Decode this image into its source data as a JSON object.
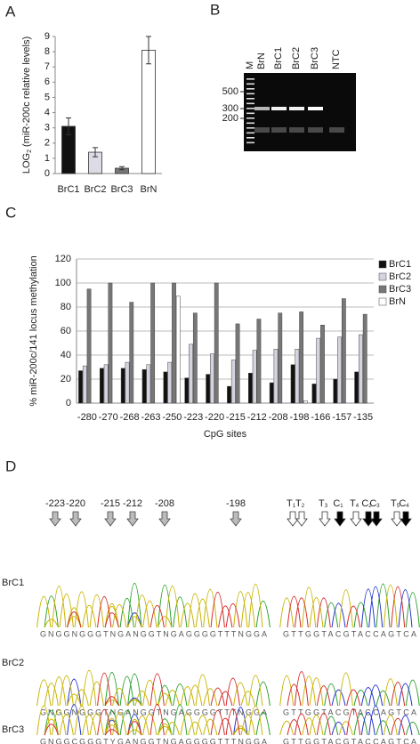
{
  "panels": [
    "A",
    "B",
    "C",
    "D"
  ],
  "chart_data": [
    {
      "type": "bar",
      "categories": [
        "BrC1",
        "BrC2",
        "BrC3",
        "BrN"
      ],
      "values": [
        3.1,
        1.4,
        0.35,
        8.1
      ],
      "errors": [
        0.55,
        0.3,
        0.1,
        0.9
      ],
      "colors": [
        "#111111",
        "#dcdce6",
        "#777777",
        "#ffffff"
      ],
      "ylabel": {
        "text": "LOG",
        "sub": "2",
        "rest": " (miR-200c relative levels)"
      },
      "ylim": [
        0,
        9
      ],
      "yticks": [
        0,
        1,
        2,
        3,
        4,
        5,
        6,
        7,
        8,
        9
      ],
      "grid": false
    },
    {
      "type": "grouped-bar",
      "ylabel": "% miR-200c/141 locus methylation",
      "xlabel": "CpG sites",
      "categories": [
        "-280",
        "-270",
        "-268",
        "-263",
        "-250",
        "-223",
        "-220",
        "-215",
        "-212",
        "-208",
        "-198",
        "-166",
        "-157",
        "-135"
      ],
      "series": [
        {
          "name": "BrC1",
          "color": "#111111",
          "values": [
            27,
            29,
            29,
            28,
            26,
            21,
            24,
            14,
            25,
            17,
            32,
            16,
            20,
            26
          ]
        },
        {
          "name": "BrC2",
          "color": "#d4d4e0",
          "values": [
            31,
            32,
            34,
            32,
            34,
            49,
            41,
            36,
            44,
            45,
            45,
            54,
            55,
            57
          ]
        },
        {
          "name": "BrC3",
          "color": "#777777",
          "values": [
            95,
            100,
            84,
            100,
            100,
            75,
            100,
            66,
            70,
            75,
            76,
            65,
            87,
            74
          ]
        },
        {
          "name": "BrN",
          "color": "#ffffff",
          "values": [
            0,
            0,
            0,
            0,
            89,
            0,
            0,
            0,
            0,
            0,
            2,
            0,
            0,
            0
          ]
        }
      ],
      "ylim": [
        0,
        120
      ],
      "yticks": [
        0,
        20,
        40,
        60,
        80,
        100,
        120
      ],
      "grid": true,
      "legend": "right"
    }
  ],
  "gel": {
    "lanes": [
      "M",
      "BrN",
      "BrC1",
      "BrC2",
      "BrC3",
      "NTC"
    ],
    "markers": [
      "500",
      "300",
      "200"
    ]
  },
  "sequencing": {
    "positions": [
      "-223",
      "-220",
      "-215",
      "-212",
      "-208",
      "-198"
    ],
    "sites": [
      {
        "text": "T",
        "sub": "1"
      },
      {
        "text": "T",
        "sub": "2"
      },
      {
        "text": "T",
        "sub": "3"
      },
      {
        "text": "C",
        "sub": "1"
      },
      {
        "text": "T",
        "sub": "4"
      },
      {
        "text": "C",
        "sub": "2"
      },
      {
        "text": "C",
        "sub": "3"
      },
      {
        "text": "T",
        "sub": "5"
      },
      {
        "text": "C",
        "sub": "4"
      }
    ],
    "rows": [
      {
        "name": "BrC1",
        "left": "GNGGNGGGTNGANGGTNGAGGGGTTTNGGA",
        "right": "GTTGGTACGTACCAGTCA"
      },
      {
        "name": "BrC2",
        "left": "GNGGNGGGTNGANGGTNGAGGGGTTTNGGA",
        "right": "GTTGGTACGTACCAGTCA"
      },
      {
        "name": "BrC3",
        "left": "GNGGCGGGTYGANGGTNGAGGGGTTTNGGA",
        "right": "GTTGGTACGTACCAGTCA"
      }
    ]
  }
}
